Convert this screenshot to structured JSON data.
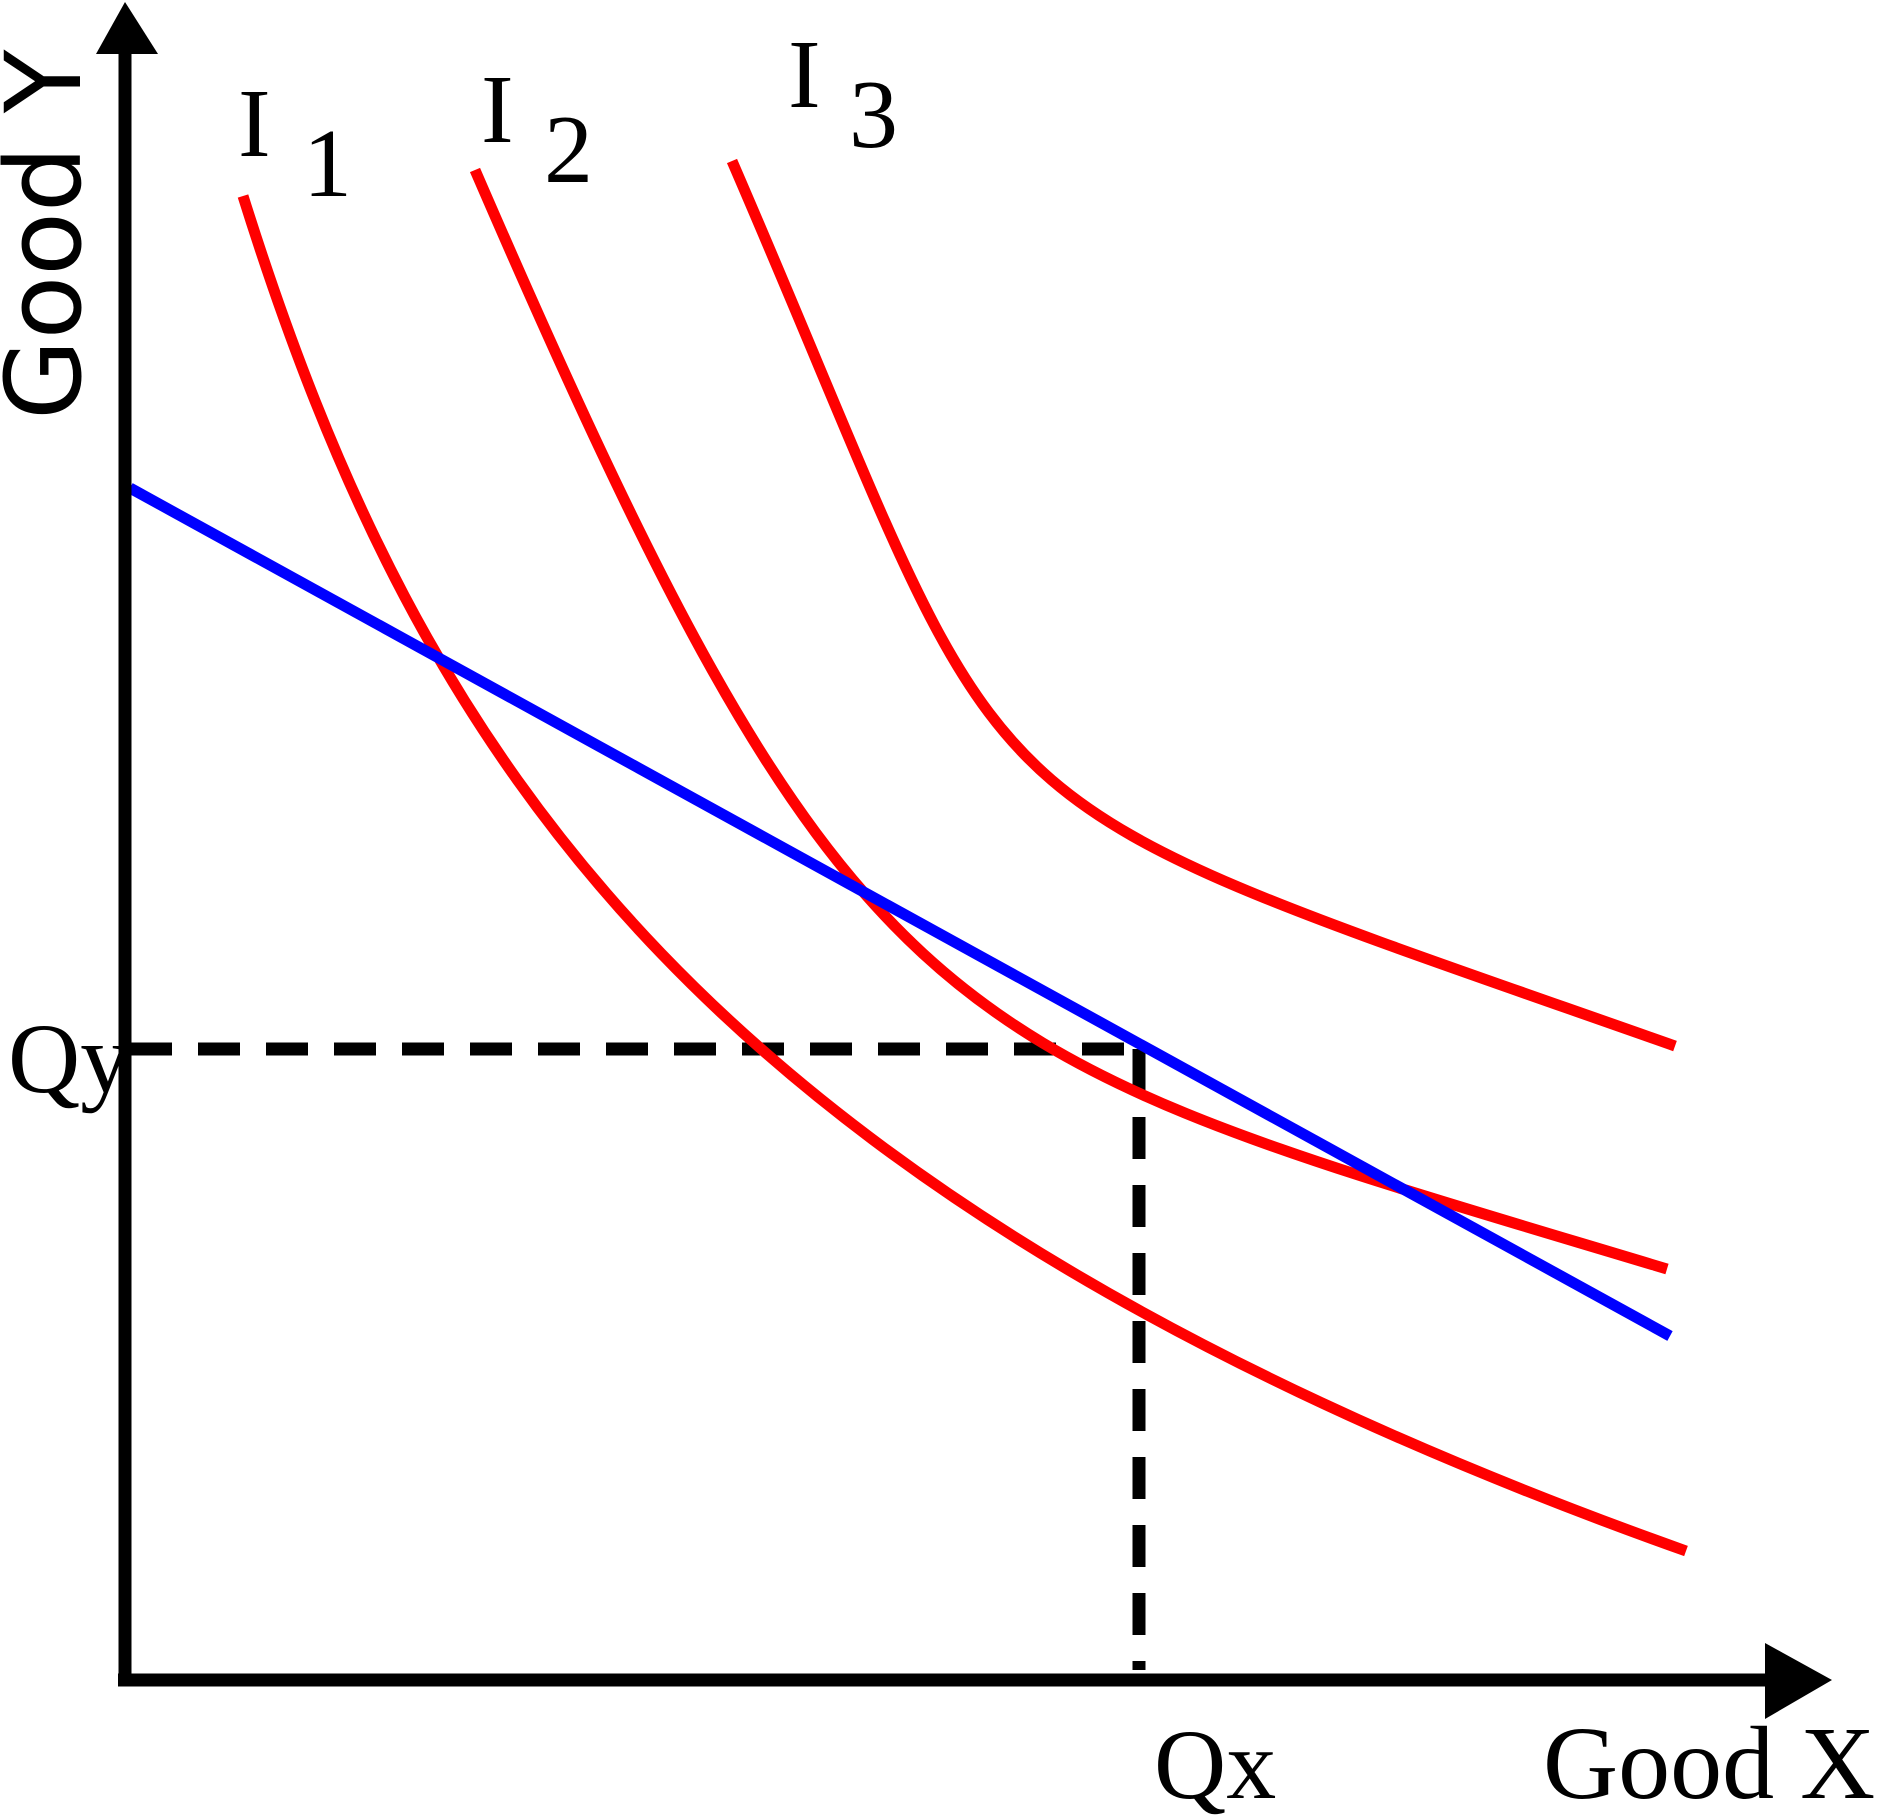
{
  "axes": {
    "y_label": "Good Y",
    "x_label": "Good X"
  },
  "curves": [
    {
      "id": "I1",
      "letter": "I",
      "subscript": "1",
      "role": "indifference-curve"
    },
    {
      "id": "I2",
      "letter": "I",
      "subscript": "2",
      "role": "indifference-curve"
    },
    {
      "id": "I3",
      "letter": "I",
      "subscript": "3",
      "role": "indifference-curve"
    }
  ],
  "optimum": {
    "x_label": "Qx",
    "y_label": "Qy"
  },
  "colors": {
    "indifference_curve": "#ff0000",
    "budget_line": "#0000ff",
    "axes": "#000000",
    "guides": "#000000"
  }
}
